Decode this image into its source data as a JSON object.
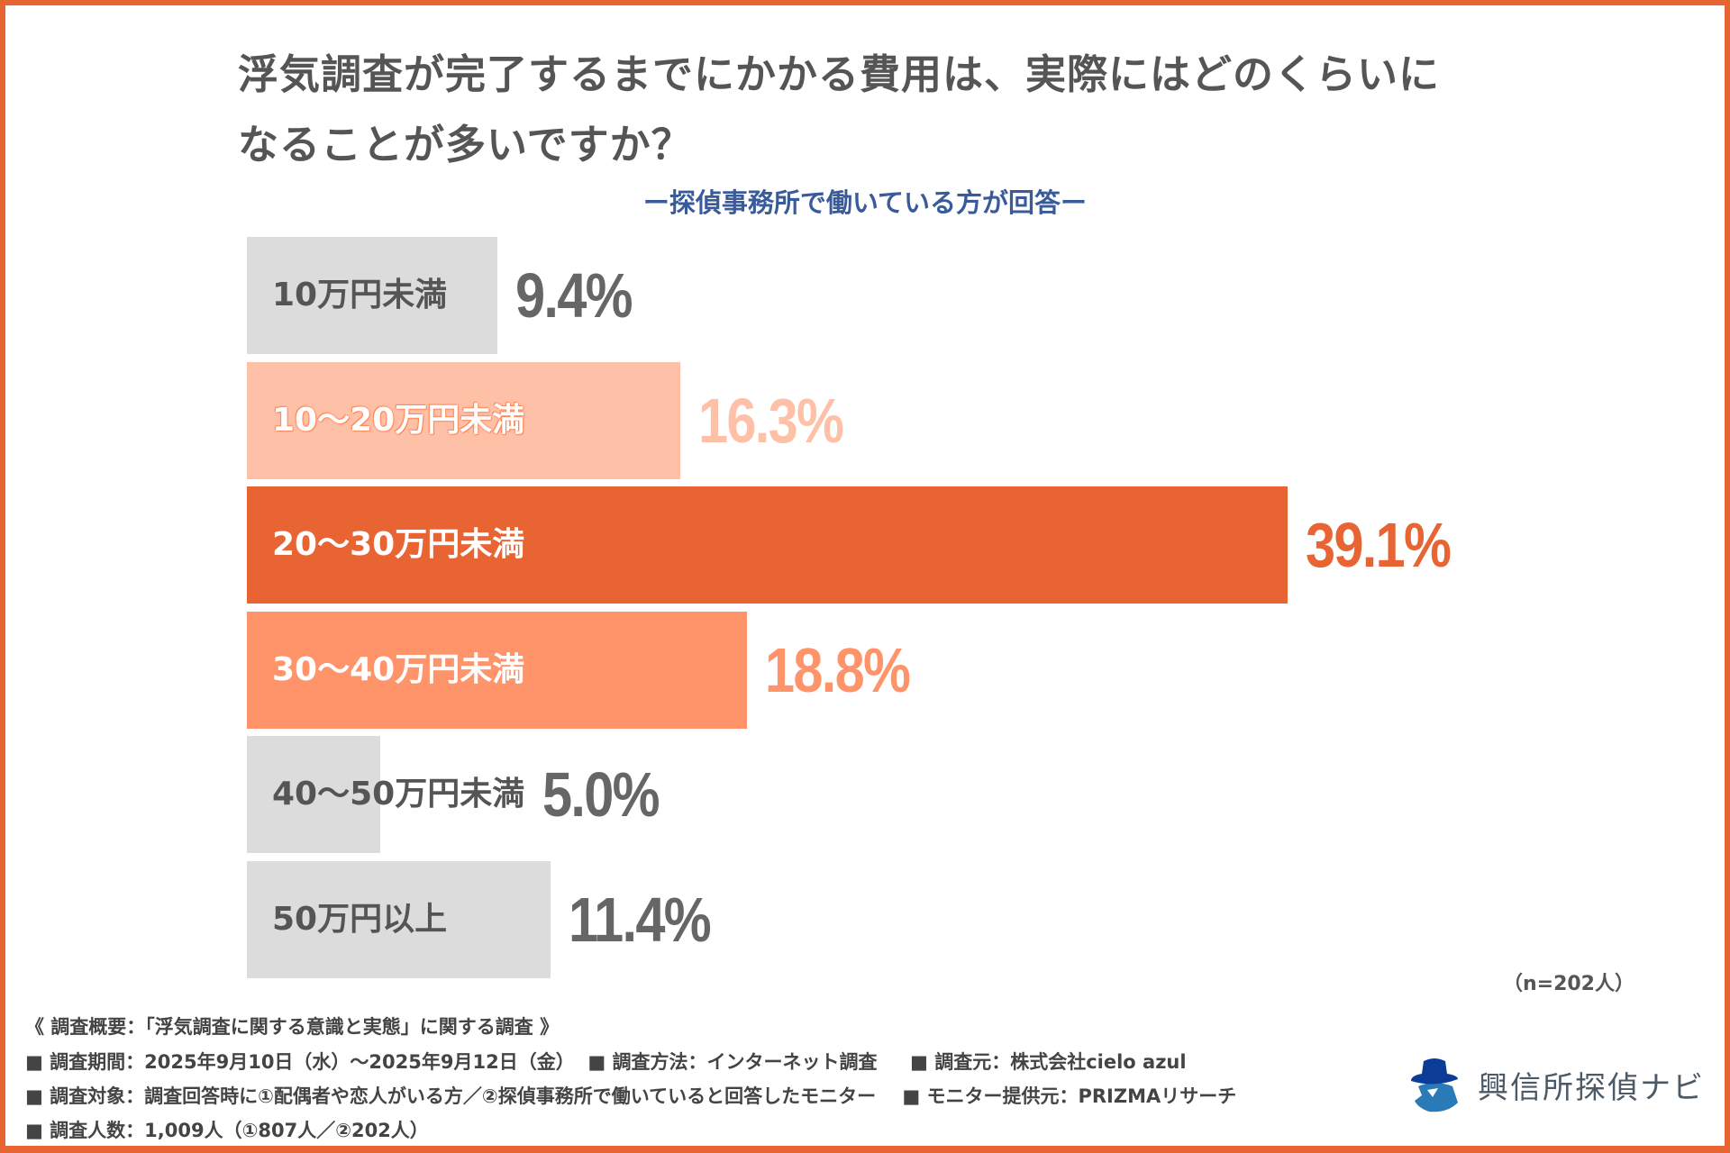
{
  "title_line1": "浮気調査が完了するまでにかかる費用は、実際にはどのくらいに",
  "title_line2": "なることが多いですか？",
  "subtitle": "ー探偵事務所で働いている方が回答ー",
  "sample_size": "（n=202人）",
  "colors": {
    "border": "#e86433",
    "gray": "#dcdcdc",
    "light": "#ffc0a8",
    "dark": "#e86433",
    "mid": "#ff946b",
    "subtitle": "#3a5b9a"
  },
  "chart_data": {
    "type": "bar",
    "orientation": "horizontal",
    "categories": [
      "10万円未満",
      "10〜20万円未満",
      "20〜30万円未満",
      "30〜40万円未満",
      "40〜50万円未満",
      "50万円以上"
    ],
    "values": [
      9.4,
      16.3,
      39.1,
      18.8,
      5.0,
      11.4
    ],
    "value_labels": [
      "9.4%",
      "16.3%",
      "39.1%",
      "18.8%",
      "5.0%",
      "11.4%"
    ],
    "bar_colors": [
      "#dcdcdc",
      "#ffc0a8",
      "#e86433",
      "#ff946b",
      "#dcdcdc",
      "#dcdcdc"
    ],
    "value_colors": [
      "#666666",
      "#ffc0a8",
      "#e86433",
      "#ff946b",
      "#666666",
      "#666666"
    ],
    "label_colors": [
      "#555555",
      "#ffffff",
      "#ffffff",
      "#ffffff",
      "#555555",
      "#555555"
    ],
    "unit": "%",
    "grid": false
  },
  "footer": {
    "overview": "《 調査概要：「浮気調査に関する意識と実態」に関する調査 》",
    "line1": "■ 調査期間：2025年9月10日（水）〜2025年9月12日（金）  ■ 調査方法：インターネット調査     ■ 調査元：株式会社cielo azul",
    "line2": "■ 調査対象：調査回答時に①配偶者や恋人がいる方／②探偵事務所で働いていると回答したモニター    ■ モニター提供元：PRIZMAリサーチ",
    "line3": "■ 調査人数：1,009人（①807人／②202人）"
  },
  "logo": {
    "text": "興信所探偵ナビ",
    "icon": "detective-hat-icon"
  }
}
